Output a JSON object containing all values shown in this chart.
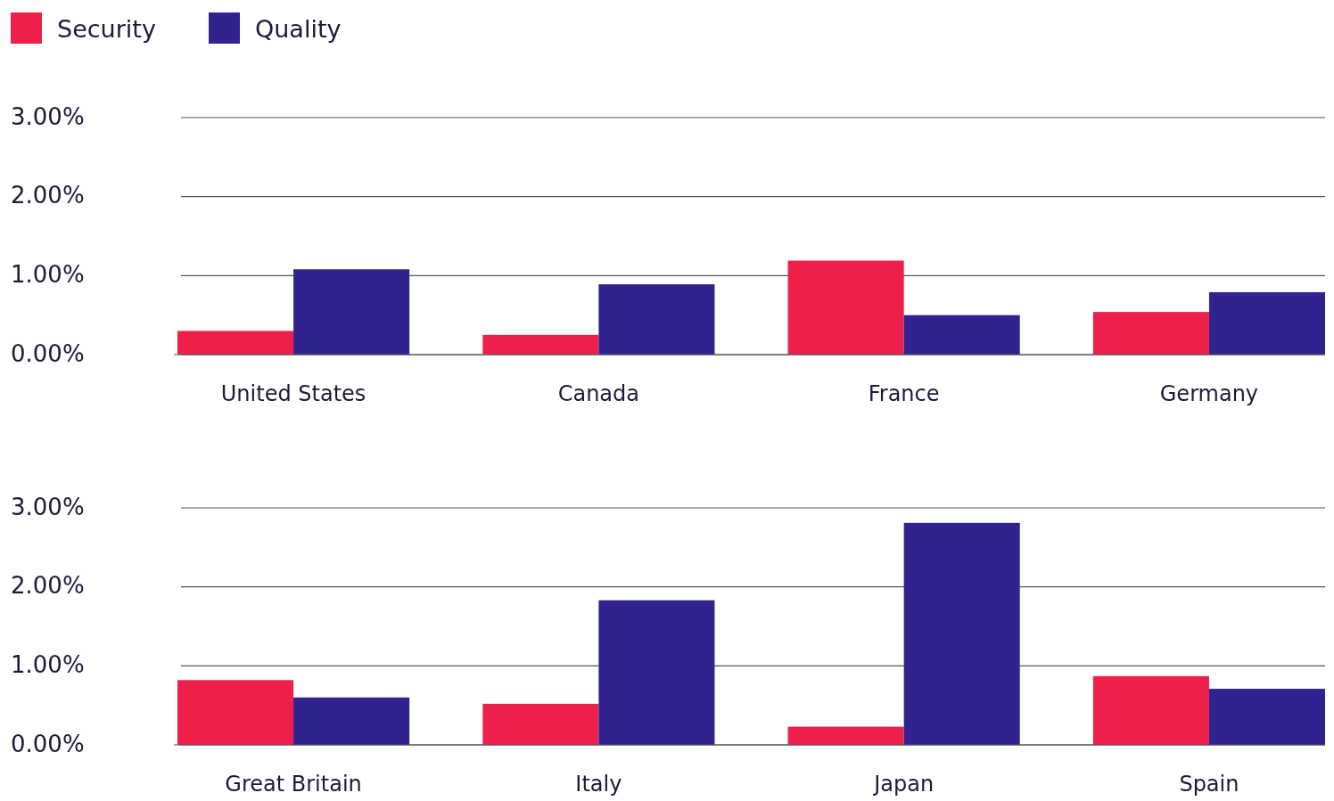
{
  "chart_data": [
    {
      "type": "bar",
      "categories": [
        "United States",
        "Canada",
        "France",
        "Germany"
      ],
      "ylim": [
        0,
        3
      ],
      "yticks": [
        {
          "value": 0,
          "label": "0.00%"
        },
        {
          "value": 1,
          "label": "1.00%"
        },
        {
          "value": 2,
          "label": "2.00%"
        },
        {
          "value": 3,
          "label": "3.00%"
        }
      ],
      "grid": "y",
      "legend": "top left",
      "series": [
        {
          "name": "Security",
          "color": "#ef1f4c",
          "values": [
            0.3,
            0.25,
            1.19,
            0.54
          ]
        },
        {
          "name": "Quality",
          "color": "#31238f",
          "values": [
            1.08,
            0.89,
            0.5,
            0.79
          ]
        }
      ]
    },
    {
      "type": "bar",
      "categories": [
        "Great Britain",
        "Italy",
        "Japan",
        "Spain"
      ],
      "ylim": [
        0,
        3
      ],
      "yticks": [
        {
          "value": 0,
          "label": "0.00%"
        },
        {
          "value": 1,
          "label": "1.00%"
        },
        {
          "value": 2,
          "label": "2.00%"
        },
        {
          "value": 3,
          "label": "3.00%"
        }
      ],
      "grid": "y",
      "series": [
        {
          "color": "#ef1f4c",
          "values": [
            0.82,
            0.52,
            0.23,
            0.87
          ]
        },
        {
          "color": "#31238f",
          "values": [
            0.6,
            1.83,
            2.81,
            0.71
          ]
        }
      ]
    }
  ]
}
